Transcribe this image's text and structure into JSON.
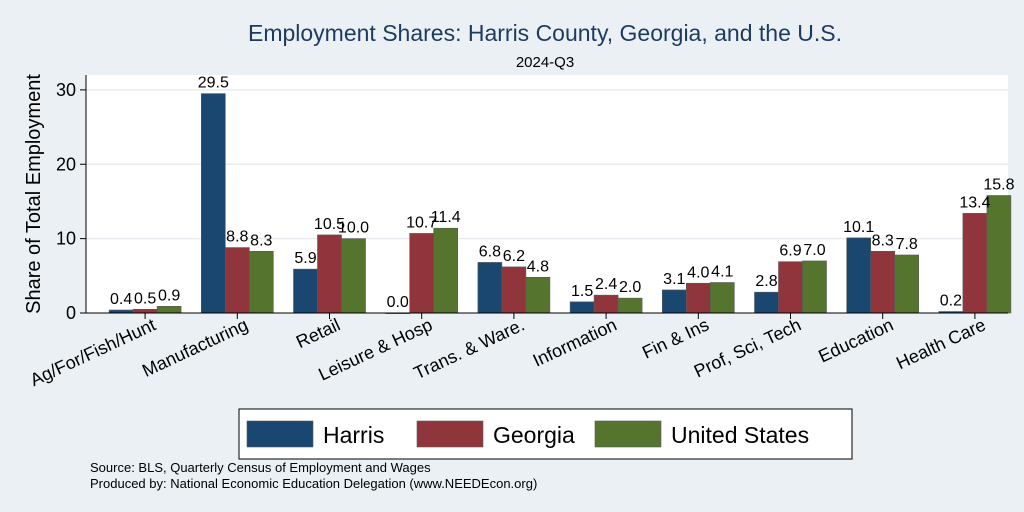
{
  "chart_data": {
    "type": "bar",
    "title": "Employment Shares: Harris County, Georgia, and the U.S.",
    "subtitle": "2024-Q3",
    "xlabel": "",
    "ylabel": "Share of Total Employment",
    "ylim": [
      0,
      32
    ],
    "yticks": [
      0,
      10,
      20,
      30
    ],
    "grid": true,
    "legend_position": "bottom",
    "categories": [
      "Ag/For/Fish/Hunt",
      "Manufacturing",
      "Retail",
      "Leisure & Hosp",
      "Trans. & Ware.",
      "Information",
      "Fin & Ins",
      "Prof, Sci, Tech",
      "Education",
      "Health Care"
    ],
    "series": [
      {
        "name": "Harris",
        "color": "#1a476f",
        "values": [
          0.4,
          29.5,
          5.9,
          0.0,
          6.8,
          1.5,
          3.1,
          2.8,
          10.1,
          0.2
        ]
      },
      {
        "name": "Georgia",
        "color": "#90353b",
        "values": [
          0.5,
          8.8,
          10.5,
          10.7,
          6.2,
          2.4,
          4.0,
          6.9,
          8.3,
          13.4
        ]
      },
      {
        "name": "United States",
        "color": "#55752f",
        "values": [
          0.9,
          8.3,
          10.0,
          11.4,
          4.8,
          2.0,
          4.1,
          7.0,
          7.8,
          15.8
        ]
      }
    ],
    "notes": [
      "Source: BLS, Quarterly Census of Employment and Wages",
      "Produced by: National Economic Education Delegation (www.NEEDEcon.org)"
    ]
  }
}
